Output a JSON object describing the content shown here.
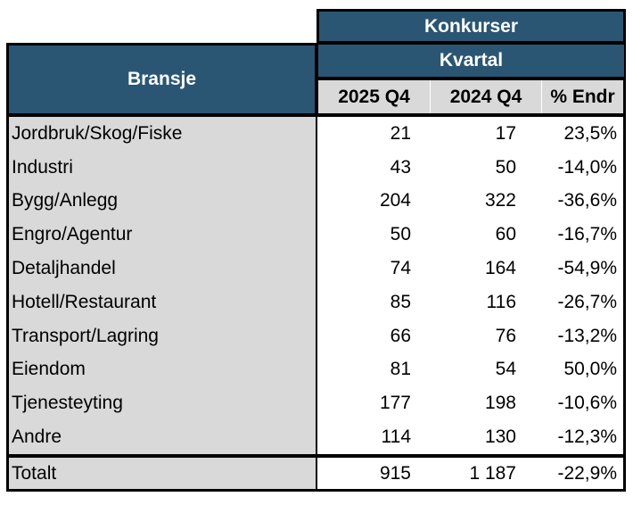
{
  "chart_data": {
    "type": "table",
    "title": "Konkurser",
    "subtitle": "Kvartal",
    "row_header": "Bransje",
    "columns": [
      "2025 Q4",
      "2024 Q4",
      "% Endr"
    ],
    "rows": [
      {
        "label": "Jordbruk/Skog/Fiske",
        "q2025_q4": "21",
        "q2024_q4": "17",
        "pct_endr": "23,5%"
      },
      {
        "label": "Industri",
        "q2025_q4": "43",
        "q2024_q4": "50",
        "pct_endr": "-14,0%"
      },
      {
        "label": "Bygg/Anlegg",
        "q2025_q4": "204",
        "q2024_q4": "322",
        "pct_endr": "-36,6%"
      },
      {
        "label": "Engro/Agentur",
        "q2025_q4": "50",
        "q2024_q4": "60",
        "pct_endr": "-16,7%"
      },
      {
        "label": "Detaljhandel",
        "q2025_q4": "74",
        "q2024_q4": "164",
        "pct_endr": "-54,9%"
      },
      {
        "label": "Hotell/Restaurant",
        "q2025_q4": "85",
        "q2024_q4": "116",
        "pct_endr": "-26,7%"
      },
      {
        "label": "Transport/Lagring",
        "q2025_q4": "66",
        "q2024_q4": "76",
        "pct_endr": "-13,2%"
      },
      {
        "label": "Eiendom",
        "q2025_q4": "81",
        "q2024_q4": "54",
        "pct_endr": "50,0%"
      },
      {
        "label": "Tjenesteyting",
        "q2025_q4": "177",
        "q2024_q4": "198",
        "pct_endr": "-10,6%"
      },
      {
        "label": "Andre",
        "q2025_q4": "114",
        "q2024_q4": "130",
        "pct_endr": "-12,3%"
      }
    ],
    "total": {
      "label": "Totalt",
      "q2025_q4": "915",
      "q2024_q4": "1 187",
      "pct_endr": "-22,9%"
    }
  },
  "colors": {
    "header_blue": "#2A5674",
    "header_gray": "#D9D9D9",
    "border_black": "#000000",
    "header_text": "#FFFFFF",
    "body_text": "#000000",
    "data_cell_bg": "#FFFFFF"
  }
}
